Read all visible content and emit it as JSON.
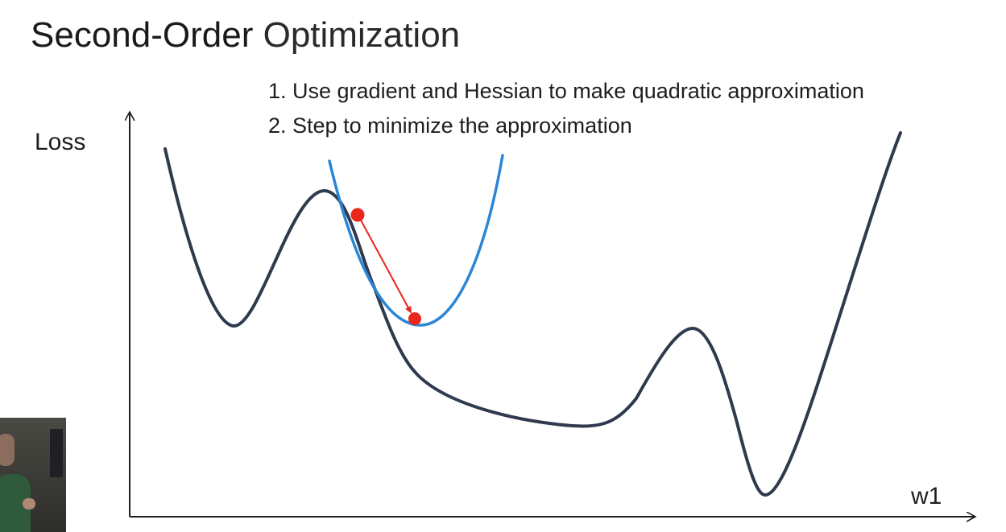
{
  "slide": {
    "title_part1": "Second-Order",
    "title_part2": "Optimization",
    "steps": [
      "1. Use gradient and Hessian to make quadratic approximation",
      "2. Step to minimize the approximation"
    ]
  },
  "axes": {
    "y_label": "Loss",
    "x_label": "w1"
  },
  "colors": {
    "loss_curve": "#2f3a4e",
    "quadratic_approx": "#2b86d6",
    "step_arrow": "#e8261b",
    "points": "#e8261b",
    "axis": "#1e1e1e"
  }
}
